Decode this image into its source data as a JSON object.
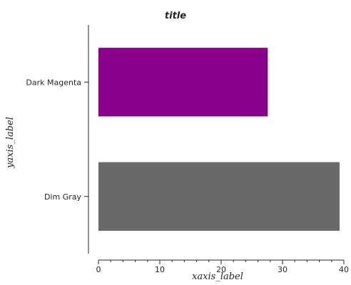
{
  "chart_data": {
    "type": "bar",
    "orientation": "horizontal",
    "title": "title",
    "xlabel": "xaxis_label",
    "ylabel": "yaxis_label",
    "categories": [
      "Dim Gray",
      "Dark Magenta"
    ],
    "values": [
      39.3,
      27.6
    ],
    "colors": [
      "#696969",
      "#8b008b"
    ],
    "xlim": [
      0,
      40
    ],
    "xticks": [
      0,
      10,
      20,
      30,
      40
    ],
    "xtick_labels": [
      "0",
      "10",
      "20",
      "30",
      "40"
    ],
    "grid": false,
    "legend": "none"
  }
}
